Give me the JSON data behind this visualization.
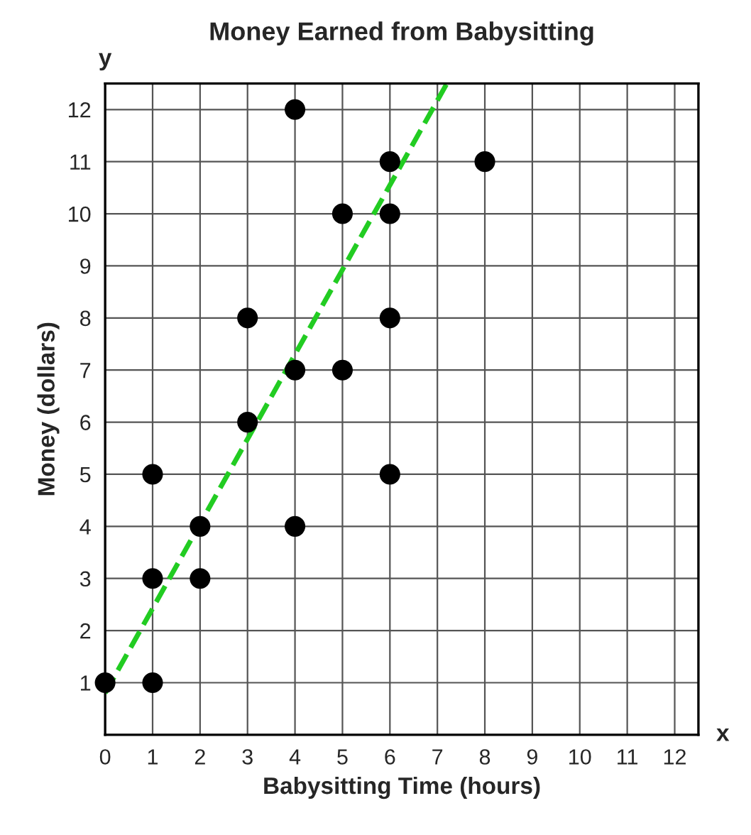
{
  "chart_data": {
    "type": "scatter",
    "title": "Money Earned from Babysitting",
    "xlabel": "Babysitting Time (hours)",
    "ylabel": "Money (dollars)",
    "annotations": [
      "x",
      "y"
    ],
    "xlim": [
      0,
      12.5
    ],
    "ylim": [
      0,
      12.5
    ],
    "xticks": [
      0,
      1,
      2,
      3,
      4,
      5,
      6,
      7,
      8,
      9,
      10,
      11,
      12
    ],
    "yticks": [
      1,
      2,
      3,
      4,
      5,
      6,
      7,
      8,
      9,
      10,
      11,
      12
    ],
    "grid": true,
    "marker": "circle",
    "series": [
      {
        "color": "#000000",
        "x": [
          0,
          1,
          1,
          1,
          2,
          2,
          3,
          3,
          4,
          4,
          4,
          5,
          5,
          6,
          6,
          6,
          6,
          8
        ],
        "values": [
          1,
          1,
          3,
          5,
          3,
          4,
          6,
          8,
          4,
          7,
          12,
          7,
          10,
          5,
          8,
          10,
          11,
          11
        ]
      },
      {
        "type": "line",
        "color": "#22cc22",
        "line_style": "dashed",
        "marker": "none",
        "x": [
          0,
          7.2
        ],
        "values": [
          0.8,
          12.5
        ]
      }
    ]
  }
}
